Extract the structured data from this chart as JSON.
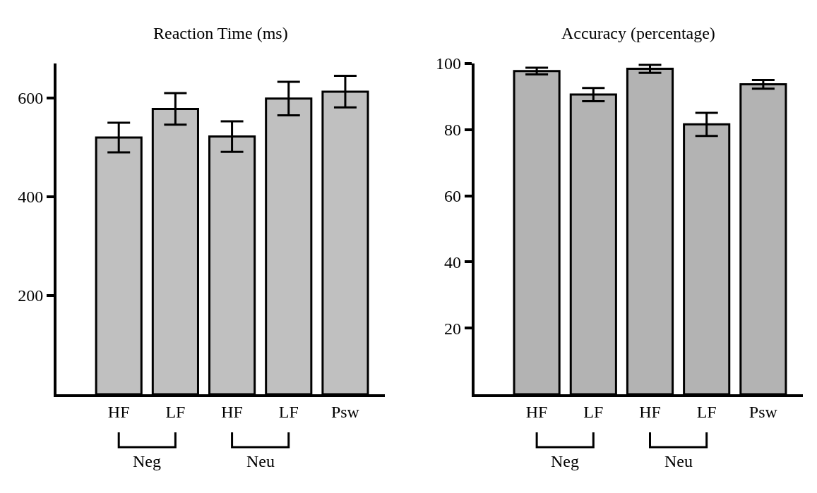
{
  "chart_data": [
    {
      "type": "bar",
      "title": "Reaction Time (ms)",
      "categories": [
        "HF",
        "LF",
        "HF",
        "LF",
        "Psw"
      ],
      "values": [
        520,
        578,
        522,
        599,
        613
      ],
      "errors": [
        30,
        32,
        31,
        34,
        32
      ],
      "color": "#c0c0c0",
      "ylim": [
        0,
        670
      ],
      "yticks": [
        200,
        400,
        600
      ],
      "annotations": [
        "Neg",
        "Neu"
      ]
    },
    {
      "type": "bar",
      "title": "Accuracy (percentage)",
      "categories": [
        "HF",
        "LF",
        "HF",
        "LF",
        "Psw"
      ],
      "values": [
        97.7,
        90.6,
        98.4,
        81.6,
        93.7
      ],
      "errors": [
        1.0,
        2.0,
        1.2,
        3.5,
        1.3
      ],
      "color": "#b3b3b3",
      "ylim": [
        0,
        100
      ],
      "yticks": [
        20,
        40,
        60,
        80,
        100
      ],
      "annotations": [
        "Neg",
        "Neu"
      ]
    }
  ]
}
